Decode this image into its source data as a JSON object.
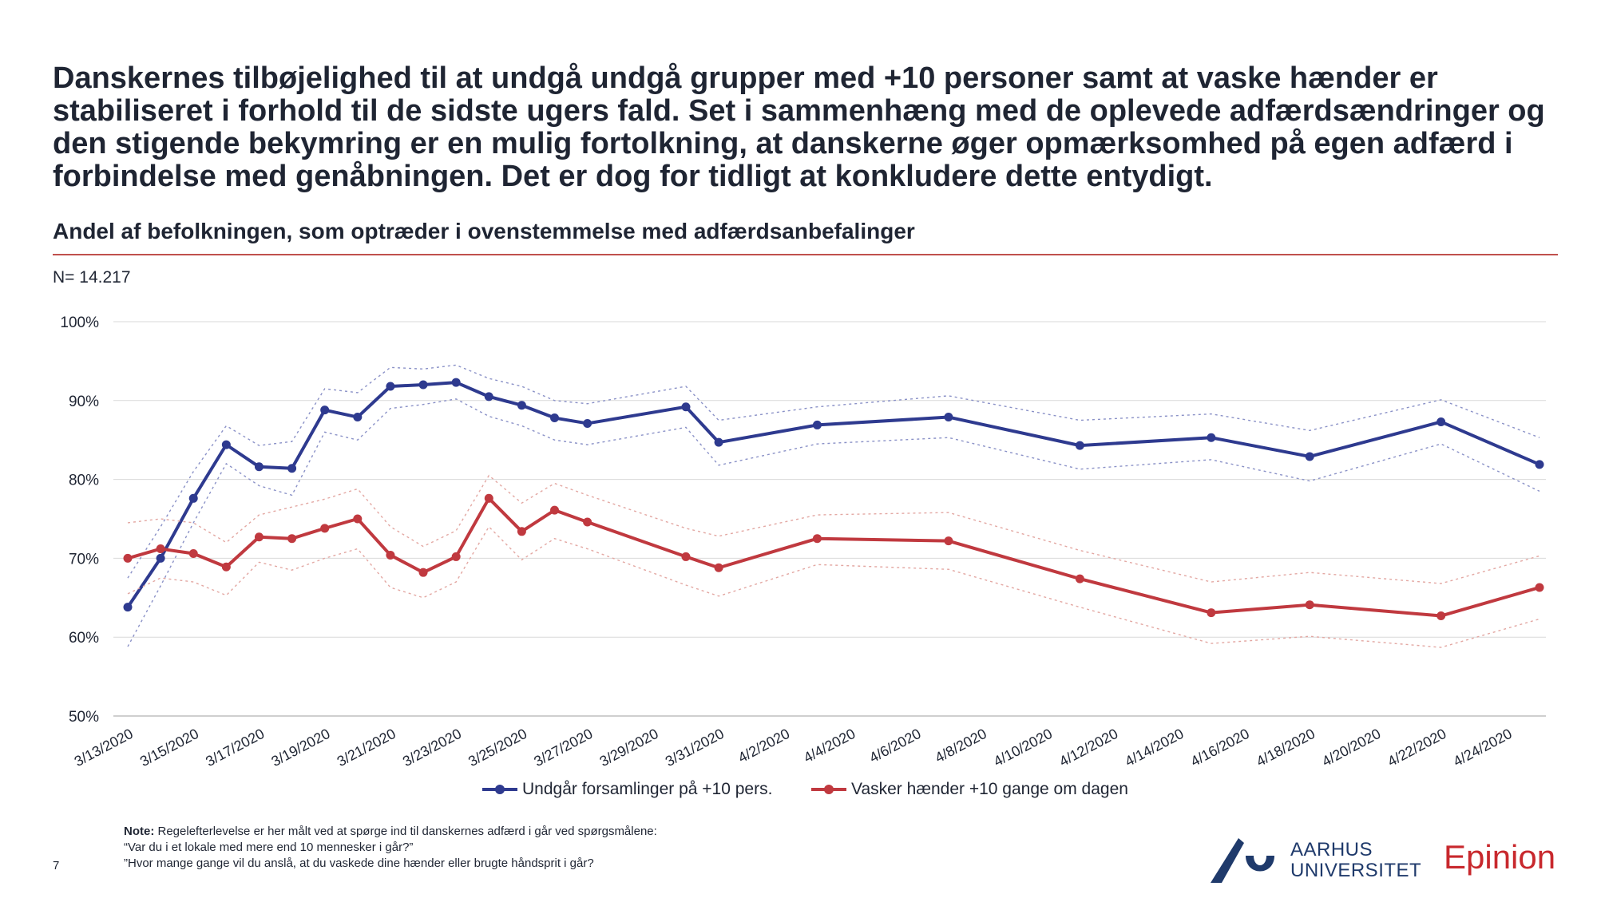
{
  "headline": "Danskernes tilbøjelighed til at undgå undgå grupper med +10 personer samt at vaske hænder er stabiliseret i forhold til de sidste ugers fald. Set i sammenhæng med de oplevede adfærdsændringer og den stigende bekymring er en mulig fortolkning, at danskerne øger opmærksomhed på egen adfærd i forbindelse med genåbningen. Det er dog for tidligt at konkludere dette entydigt.",
  "colors": {
    "series1": "#2e3a8f",
    "series2": "#c0393f",
    "rule": "#c0504d",
    "grid": "#d9d9d9",
    "text": "#1f2533"
  },
  "chart_data": {
    "type": "line",
    "title": "Andel af befolkningen, som optræder i ovenstemmelse med adfærdsanbefalinger",
    "sample_note": "N= 14.217",
    "xlabel": "",
    "ylabel": "",
    "x_axis_type": "date",
    "ylim": [
      50,
      100
    ],
    "y_ticks": [
      "50%",
      "60%",
      "70%",
      "80%",
      "90%",
      "100%"
    ],
    "x_ticks": [
      "3/13/2020",
      "3/15/2020",
      "3/17/2020",
      "3/19/2020",
      "3/21/2020",
      "3/23/2020",
      "3/25/2020",
      "3/27/2020",
      "3/29/2020",
      "3/31/2020",
      "4/2/2020",
      "4/4/2020",
      "4/6/2020",
      "4/8/2020",
      "4/10/2020",
      "4/12/2020",
      "4/14/2020",
      "4/16/2020",
      "4/18/2020",
      "4/20/2020",
      "4/22/2020",
      "4/24/2020"
    ],
    "grid": true,
    "legend_position": "bottom",
    "x": [
      "2020-03-13",
      "2020-03-14",
      "2020-03-15",
      "2020-03-16",
      "2020-03-17",
      "2020-03-18",
      "2020-03-19",
      "2020-03-20",
      "2020-03-21",
      "2020-03-22",
      "2020-03-23",
      "2020-03-24",
      "2020-03-25",
      "2020-03-26",
      "2020-03-27",
      "2020-03-30",
      "2020-03-31",
      "2020-04-03",
      "2020-04-07",
      "2020-04-11",
      "2020-04-15",
      "2020-04-18",
      "2020-04-22",
      "2020-04-25"
    ],
    "series": [
      {
        "name": "Undgår forsamlinger på +10 pers.",
        "values": [
          63.8,
          70.0,
          77.6,
          84.4,
          81.6,
          81.4,
          88.8,
          87.9,
          91.8,
          92.0,
          92.3,
          90.5,
          89.4,
          87.8,
          87.1,
          89.2,
          84.7,
          86.9,
          87.9,
          84.3,
          85.3,
          82.9,
          87.3,
          81.9
        ],
        "upper": [
          67.5,
          74.0,
          81.0,
          86.8,
          84.3,
          84.8,
          91.5,
          91.0,
          94.2,
          94.0,
          94.5,
          92.8,
          91.8,
          90.0,
          89.6,
          91.8,
          87.5,
          89.2,
          90.6,
          87.5,
          88.3,
          86.2,
          90.1,
          85.3
        ],
        "lower": [
          58.8,
          66.5,
          74.5,
          82.0,
          79.2,
          78.0,
          86.0,
          85.0,
          89.0,
          89.5,
          90.2,
          88.0,
          86.8,
          85.0,
          84.4,
          86.6,
          81.8,
          84.5,
          85.3,
          81.3,
          82.5,
          79.8,
          84.5,
          78.5
        ]
      },
      {
        "name": "Vasker hænder +10 gange om dagen",
        "values": [
          70.0,
          71.2,
          70.6,
          68.9,
          72.7,
          72.5,
          73.8,
          75.0,
          70.4,
          68.2,
          70.2,
          77.6,
          73.4,
          76.1,
          74.6,
          70.2,
          68.8,
          72.5,
          72.2,
          67.4,
          63.1,
          64.1,
          62.7,
          66.3
        ],
        "upper": [
          74.5,
          75.0,
          74.5,
          72.0,
          75.5,
          76.5,
          77.5,
          78.8,
          74.0,
          71.5,
          73.5,
          80.5,
          77.0,
          79.5,
          78.0,
          73.8,
          72.8,
          75.5,
          75.8,
          71.0,
          67.0,
          68.2,
          66.8,
          70.3
        ],
        "lower": [
          65.5,
          67.5,
          67.0,
          65.3,
          69.5,
          68.5,
          70.0,
          71.2,
          66.3,
          65.0,
          67.0,
          74.0,
          69.8,
          72.5,
          71.2,
          66.6,
          65.2,
          69.2,
          68.6,
          63.8,
          59.2,
          60.1,
          58.7,
          62.3
        ]
      }
    ]
  },
  "note": {
    "label": "Note:",
    "line1": "Regelefterlevelse er her målt ved at spørge ind til danskernes adfærd i går ved spørgsmålene:",
    "line2": "“Var du i et lokale med mere end 10 mennesker i går?”",
    "line3": "”Hvor mange gange vil du anslå, at du vaskede dine hænder eller brugte håndsprit i går?"
  },
  "page_number": "7",
  "logos": {
    "au_line1": "AARHUS",
    "au_line2": "UNIVERSITET",
    "epinion": "Epinion"
  }
}
